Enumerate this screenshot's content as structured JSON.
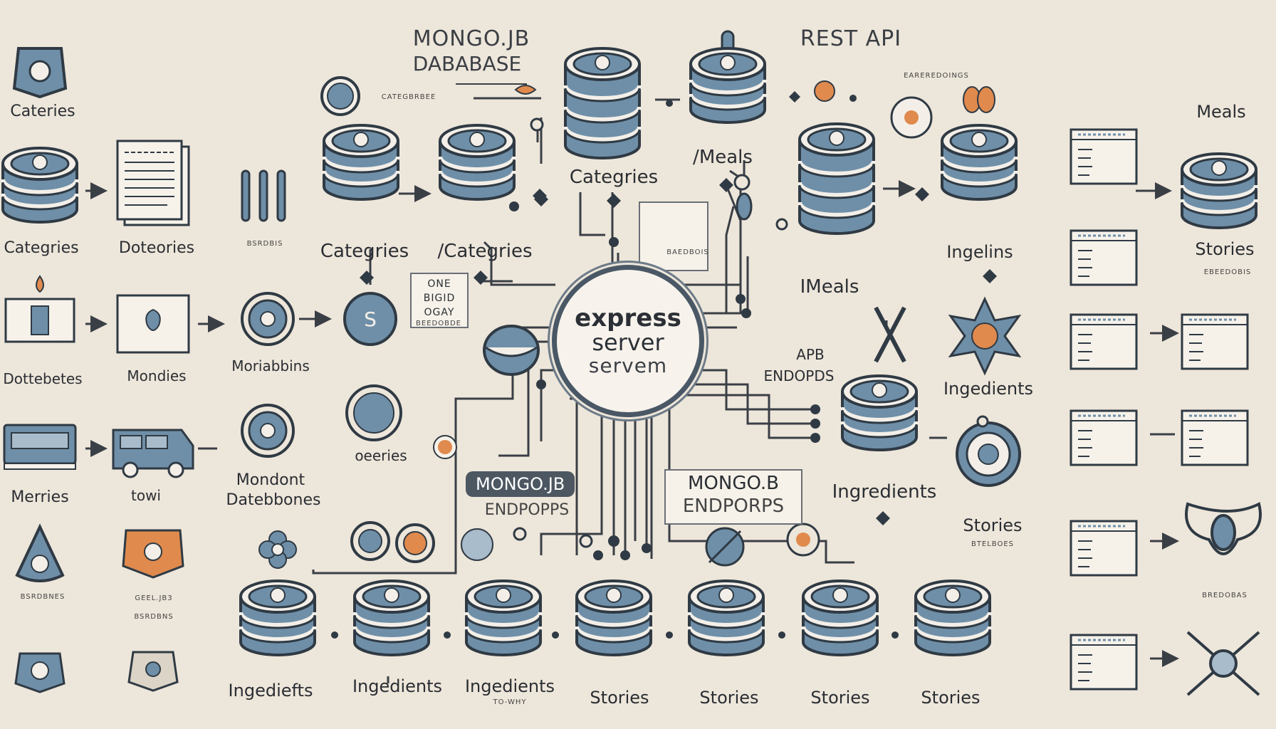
{
  "server": {
    "line1": "express",
    "line2": "server",
    "line3": "servem"
  },
  "headers": {
    "mongo_title_1": "MONGO.JB",
    "mongo_title_2": "DABABASE",
    "categories_tag": "CATEGBRBEE",
    "rest_api": "REST API",
    "rest_sub": "EAREREDOINGS",
    "meals_right": "Meals"
  },
  "labels": {
    "left_categories_top": "Cateries",
    "left_categries": "Categries",
    "doteories": "Doteories",
    "dottebetes": "Dottebetes",
    "mondies": "Mondies",
    "metries": "Merries",
    "towi": "towi",
    "moriabins": "Moriabbins",
    "mondont_1": "Mondont",
    "mondont_2": "Datebbones",
    "oeries": "oeeries",
    "categries_a": "Categries",
    "categries_b": "/Categries",
    "categries_c": "Categries",
    "meals_top": "/Meals",
    "imeals": "IMeals",
    "ingelins": "Ingelins",
    "apb_1": "APB",
    "apb_2": "ENDOPDS",
    "ingedients": "Ingedients",
    "ingredients_mid": "Ingredients",
    "stories_mid": "Stories",
    "stories_right": "Stories",
    "mongo_pill": "MONGO.JB",
    "mongo_pill_sub": "ENDPOPPS",
    "mongo_b_1": "MONGO.B",
    "mongo_b_2": "ENDPORPS",
    "one_box_1": "ONE",
    "one_box_2": "BIGID",
    "one_box_3": "OGAY",
    "bottom": [
      "Ingediefts",
      "Ingedients",
      "Ingedients",
      "Stories",
      "Stories",
      "Stories",
      "Stories"
    ],
    "bottom_sub": "TO-WHY",
    "tiny_notes": [
      "BSRDBIS",
      "BSRDBNES",
      "BSRDBNS",
      "BEEDOBDE",
      "BAEDBOIS",
      "EBEEDOBIS",
      "BREDOBAS",
      "BTELBOES",
      "GEEL.JB3"
    ]
  },
  "colors": {
    "background": "#ede6da",
    "db_fill": "#6f8fa8",
    "db_stroke": "#2f3a44",
    "line": "#3a3f46",
    "accent_orange": "#e08a4e",
    "server_ring": "#4a5866"
  },
  "icons": [
    "database-icon",
    "document-icon",
    "utensils-icon",
    "bus-icon",
    "flower-icon",
    "network-node-icon",
    "pin-icon",
    "bullet-icon"
  ]
}
